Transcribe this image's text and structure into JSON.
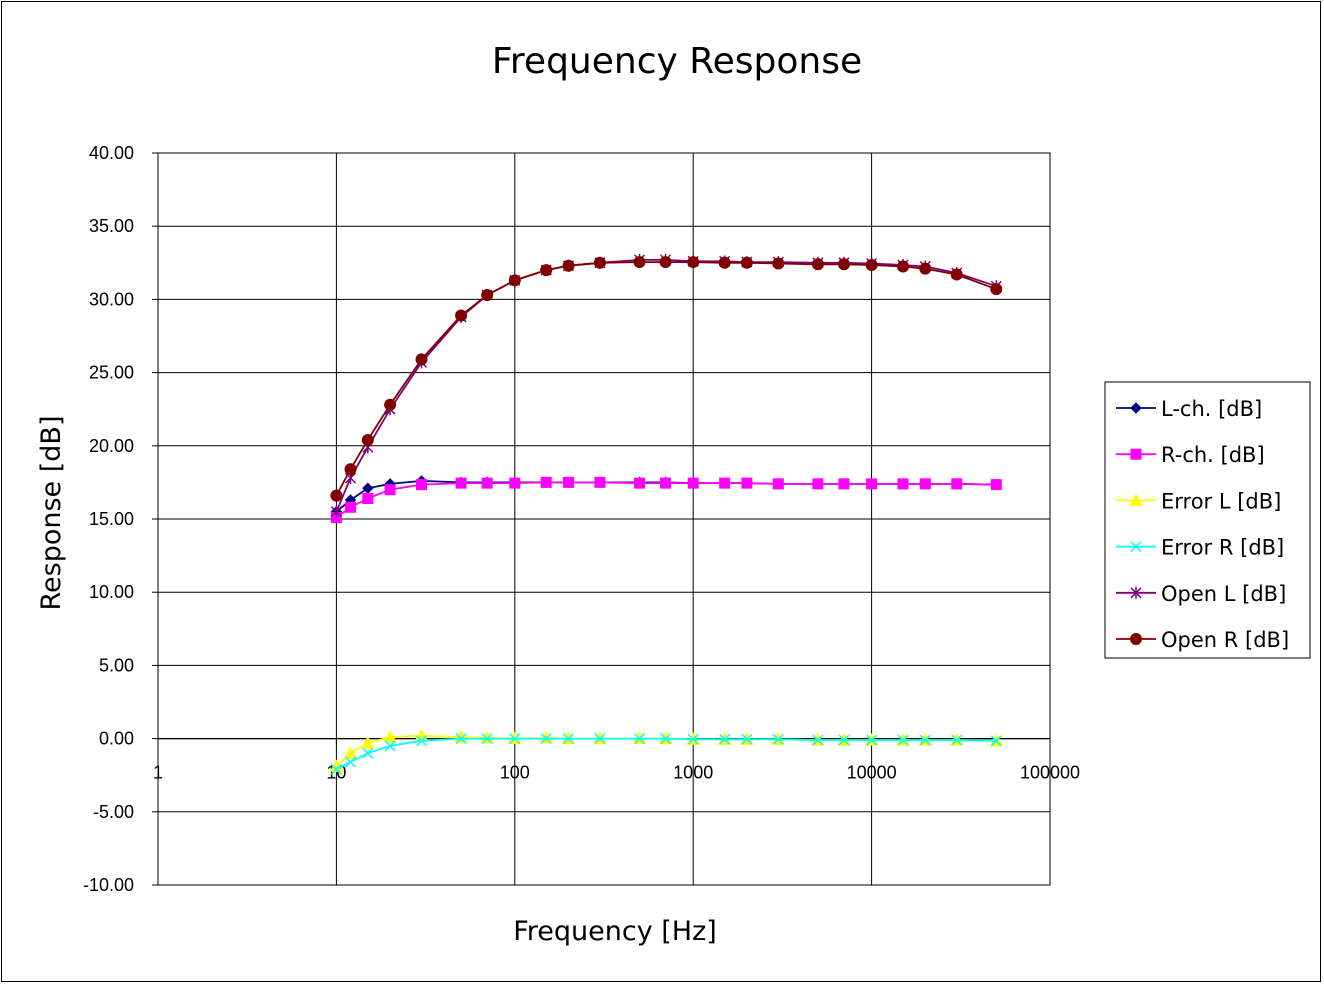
{
  "chart_data": {
    "type": "line",
    "title": "Frequency Response",
    "xlabel": "Frequency [Hz]",
    "ylabel": "Response [dB]",
    "xscale": "log",
    "xlim": [
      1,
      100000
    ],
    "ylim": [
      -10,
      40
    ],
    "x_ticks": [
      "1",
      "10",
      "100",
      "1000",
      "10000",
      "100000"
    ],
    "y_ticks": [
      "40.00",
      "35.00",
      "30.00",
      "25.00",
      "20.00",
      "15.00",
      "10.00",
      "5.00",
      "0.00",
      "-5.00",
      "-10.00"
    ],
    "grid": true,
    "legend_position": "right",
    "x": [
      10,
      12,
      15,
      20,
      30,
      50,
      70,
      100,
      150,
      200,
      300,
      500,
      700,
      1000,
      1500,
      2000,
      3000,
      5000,
      7000,
      10000,
      15000,
      20000,
      30000,
      50000
    ],
    "series": [
      {
        "name": "L-ch. [dB]",
        "color": "#000080",
        "marker": "diamond",
        "values": [
          15.5,
          16.3,
          17.1,
          17.4,
          17.6,
          17.5,
          17.5,
          17.5,
          17.5,
          17.5,
          17.5,
          17.5,
          17.5,
          17.45,
          17.45,
          17.45,
          17.4,
          17.4,
          17.4,
          17.4,
          17.4,
          17.4,
          17.4,
          17.35
        ]
      },
      {
        "name": "R-ch. [dB]",
        "color": "#FF00FF",
        "marker": "square",
        "values": [
          15.1,
          15.8,
          16.4,
          17.0,
          17.35,
          17.45,
          17.45,
          17.45,
          17.5,
          17.5,
          17.5,
          17.45,
          17.45,
          17.45,
          17.45,
          17.45,
          17.4,
          17.4,
          17.4,
          17.4,
          17.4,
          17.4,
          17.4,
          17.35
        ]
      },
      {
        "name": "Error L [dB]",
        "color": "#FFFF00",
        "marker": "triangle",
        "values": [
          -1.9,
          -1.0,
          -0.3,
          0.1,
          0.2,
          0.1,
          0.05,
          0.0,
          0.05,
          0.0,
          0.0,
          0.0,
          0.0,
          -0.05,
          -0.05,
          -0.05,
          -0.05,
          -0.1,
          -0.1,
          -0.1,
          -0.1,
          -0.1,
          -0.1,
          -0.15
        ]
      },
      {
        "name": "Error R [dB]",
        "color": "#00FFFF",
        "marker": "x",
        "values": [
          -2.1,
          -1.6,
          -1.0,
          -0.5,
          -0.15,
          0.0,
          0.0,
          0.0,
          0.0,
          0.0,
          0.0,
          0.0,
          0.0,
          -0.05,
          -0.05,
          -0.05,
          -0.05,
          -0.1,
          -0.1,
          -0.1,
          -0.1,
          -0.1,
          -0.1,
          -0.15
        ]
      },
      {
        "name": "Open L [dB]",
        "color": "#800080",
        "marker": "star",
        "values": [
          15.5,
          17.8,
          19.9,
          22.5,
          25.7,
          28.8,
          30.3,
          31.3,
          32.0,
          32.3,
          32.5,
          32.7,
          32.7,
          32.6,
          32.6,
          32.55,
          32.55,
          32.5,
          32.5,
          32.45,
          32.35,
          32.25,
          31.8,
          30.9
        ]
      },
      {
        "name": "Open R [dB]",
        "color": "#800000",
        "marker": "circle",
        "values": [
          16.6,
          18.4,
          20.4,
          22.8,
          25.9,
          28.9,
          30.3,
          31.3,
          32.0,
          32.3,
          32.5,
          32.55,
          32.55,
          32.55,
          32.5,
          32.5,
          32.45,
          32.4,
          32.4,
          32.35,
          32.25,
          32.1,
          31.7,
          30.7
        ]
      }
    ]
  }
}
